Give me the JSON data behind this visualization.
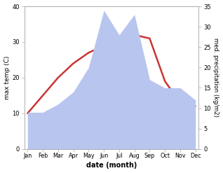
{
  "months": [
    "Jan",
    "Feb",
    "Mar",
    "Apr",
    "May",
    "Jun",
    "Jul",
    "Aug",
    "Sep",
    "Oct",
    "Nov",
    "Dec"
  ],
  "temperature": [
    10,
    15,
    20,
    24,
    27,
    29,
    28,
    32,
    31,
    19,
    13,
    12
  ],
  "precipitation": [
    9,
    9,
    11,
    14,
    20,
    34,
    28,
    33,
    17,
    15,
    15,
    12
  ],
  "temp_color": "#cc3333",
  "precip_color": "#b8c5ef",
  "temp_ylim": [
    0,
    40
  ],
  "precip_ylim": [
    0,
    35
  ],
  "temp_yticks": [
    0,
    10,
    20,
    30,
    40
  ],
  "precip_yticks": [
    0,
    5,
    10,
    15,
    20,
    25,
    30,
    35
  ],
  "xlabel": "date (month)",
  "ylabel_left": "max temp (C)",
  "ylabel_right": "med. precipitation (kg/m2)",
  "bg_color": "#ffffff",
  "line_width": 1.8,
  "spine_color": "#aaaaaa"
}
